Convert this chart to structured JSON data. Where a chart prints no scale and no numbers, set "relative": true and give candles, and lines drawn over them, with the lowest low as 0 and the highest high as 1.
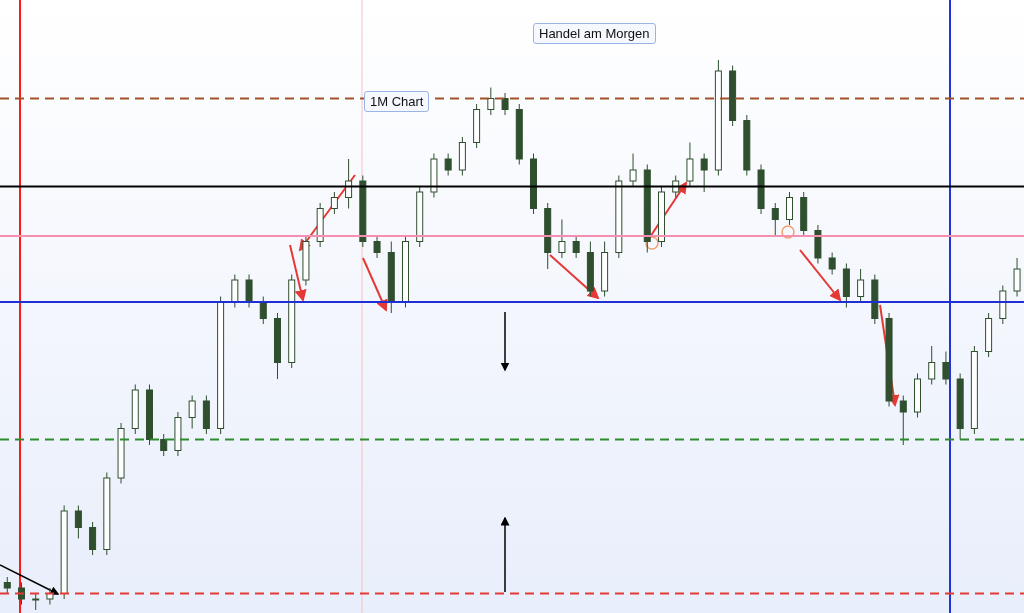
{
  "chart_data": {
    "type": "candlestick",
    "relative": true,
    "color": "#2f4f2f",
    "annotations": [
      "Handel am Morgen",
      "1M Chart"
    ],
    "categories": [
      null,
      null,
      null,
      null,
      null,
      null,
      null,
      null,
      null,
      null,
      null,
      null,
      null,
      null,
      null,
      null,
      null,
      null,
      null,
      null,
      null,
      null,
      null,
      null,
      null,
      null,
      null,
      null,
      null,
      null,
      null,
      null,
      null,
      null,
      null,
      null,
      null,
      null,
      null,
      null,
      null,
      null,
      null,
      null,
      null,
      null,
      null,
      null,
      null,
      null,
      null,
      null,
      null,
      null,
      null,
      null,
      null,
      null,
      null,
      null,
      null,
      null,
      null,
      null,
      null,
      null,
      null,
      null,
      null,
      null,
      null,
      null
    ],
    "ohlc": [
      [
        0.05,
        0.06,
        0.03,
        0.04
      ],
      [
        0.04,
        0.05,
        0.01,
        0.02
      ],
      [
        0.02,
        0.03,
        0,
        0.02
      ],
      [
        0.02,
        0.04,
        0.01,
        0.03
      ],
      [
        0.03,
        0.19,
        0.02,
        0.18
      ],
      [
        0.18,
        0.19,
        0.13,
        0.15
      ],
      [
        0.15,
        0.16,
        0.1,
        0.11
      ],
      [
        0.11,
        0.25,
        0.1,
        0.24
      ],
      [
        0.24,
        0.34,
        0.23,
        0.33
      ],
      [
        0.33,
        0.41,
        0.32,
        0.4
      ],
      [
        0.4,
        0.41,
        0.3,
        0.31
      ],
      [
        0.31,
        0.32,
        0.28,
        0.29
      ],
      [
        0.29,
        0.36,
        0.28,
        0.35
      ],
      [
        0.35,
        0.39,
        0.33,
        0.38
      ],
      [
        0.38,
        0.39,
        0.32,
        0.33
      ],
      [
        0.33,
        0.57,
        0.32,
        0.56
      ],
      [
        0.56,
        0.61,
        0.55,
        0.6
      ],
      [
        0.6,
        0.61,
        0.55,
        0.56
      ],
      [
        0.56,
        0.57,
        0.52,
        0.53
      ],
      [
        0.53,
        0.54,
        0.42,
        0.45
      ],
      [
        0.45,
        0.61,
        0.44,
        0.6
      ],
      [
        0.6,
        0.68,
        0.59,
        0.67
      ],
      [
        0.67,
        0.74,
        0.66,
        0.73
      ],
      [
        0.73,
        0.76,
        0.72,
        0.75
      ],
      [
        0.75,
        0.82,
        0.73,
        0.78
      ],
      [
        0.78,
        0.79,
        0.66,
        0.67
      ],
      [
        0.67,
        0.68,
        0.64,
        0.65
      ],
      [
        0.65,
        0.67,
        0.54,
        0.56
      ],
      [
        0.56,
        0.68,
        0.55,
        0.67
      ],
      [
        0.67,
        0.77,
        0.66,
        0.76
      ],
      [
        0.76,
        0.83,
        0.75,
        0.82
      ],
      [
        0.82,
        0.83,
        0.79,
        0.8
      ],
      [
        0.8,
        0.86,
        0.79,
        0.85
      ],
      [
        0.85,
        0.92,
        0.84,
        0.91
      ],
      [
        0.91,
        0.95,
        0.9,
        0.93
      ],
      [
        0.93,
        0.94,
        0.9,
        0.91
      ],
      [
        0.91,
        0.92,
        0.81,
        0.82
      ],
      [
        0.82,
        0.83,
        0.72,
        0.73
      ],
      [
        0.73,
        0.74,
        0.62,
        0.65
      ],
      [
        0.65,
        0.71,
        0.64,
        0.67
      ],
      [
        0.67,
        0.68,
        0.64,
        0.65
      ],
      [
        0.65,
        0.67,
        0.57,
        0.58
      ],
      [
        0.58,
        0.67,
        0.57,
        0.65
      ],
      [
        0.65,
        0.79,
        0.64,
        0.78
      ],
      [
        0.78,
        0.83,
        0.77,
        0.8
      ],
      [
        0.8,
        0.81,
        0.65,
        0.67
      ],
      [
        0.67,
        0.77,
        0.66,
        0.76
      ],
      [
        0.76,
        0.79,
        0.75,
        0.78
      ],
      [
        0.78,
        0.85,
        0.77,
        0.82
      ],
      [
        0.82,
        0.83,
        0.76,
        0.8
      ],
      [
        0.8,
        1,
        0.79,
        0.98
      ],
      [
        0.98,
        0.99,
        0.88,
        0.89
      ],
      [
        0.89,
        0.9,
        0.79,
        0.8
      ],
      [
        0.8,
        0.81,
        0.72,
        0.73
      ],
      [
        0.73,
        0.74,
        0.68,
        0.71
      ],
      [
        0.71,
        0.76,
        0.7,
        0.75
      ],
      [
        0.75,
        0.76,
        0.68,
        0.69
      ],
      [
        0.69,
        0.7,
        0.63,
        0.64
      ],
      [
        0.64,
        0.65,
        0.61,
        0.62
      ],
      [
        0.62,
        0.63,
        0.55,
        0.57
      ],
      [
        0.57,
        0.62,
        0.56,
        0.6
      ],
      [
        0.6,
        0.61,
        0.52,
        0.53
      ],
      [
        0.53,
        0.54,
        0.37,
        0.38
      ],
      [
        0.38,
        0.39,
        0.3,
        0.36
      ],
      [
        0.36,
        0.43,
        0.35,
        0.42
      ],
      [
        0.42,
        0.48,
        0.41,
        0.45
      ],
      [
        0.45,
        0.47,
        0.41,
        0.42
      ],
      [
        0.42,
        0.43,
        0.31,
        0.33
      ],
      [
        0.33,
        0.48,
        0.32,
        0.47
      ],
      [
        0.47,
        0.54,
        0.46,
        0.53
      ],
      [
        0.53,
        0.59,
        0.52,
        0.58
      ],
      [
        0.58,
        0.64,
        0.57,
        0.62
      ]
    ],
    "ref_lines": [
      {
        "axis": "y",
        "value": 0.93,
        "color": "#a0522d",
        "line_style": "dashed"
      },
      {
        "axis": "y",
        "value": 0.77,
        "color": "#000000",
        "line_style": "solid"
      },
      {
        "axis": "y",
        "value": 0.68,
        "color": "#f48fb1",
        "line_style": "solid"
      },
      {
        "axis": "y",
        "value": 0.56,
        "color": "#1f2fd6",
        "line_style": "solid"
      },
      {
        "axis": "y",
        "value": 0.31,
        "color": "#2e8b2e",
        "line_style": "dashed"
      },
      {
        "axis": "y",
        "value": 0.03,
        "color": "#e53935",
        "line_style": "dashed"
      }
    ]
  }
}
